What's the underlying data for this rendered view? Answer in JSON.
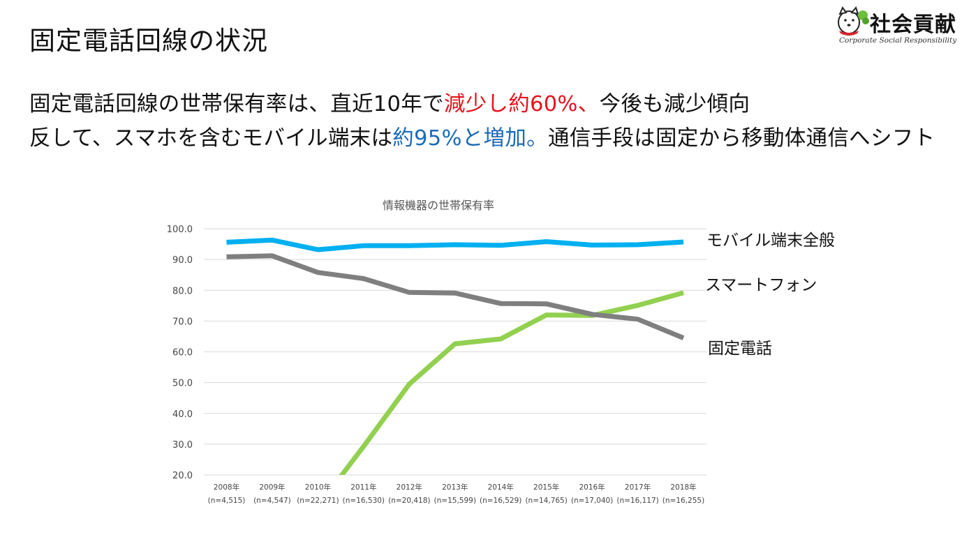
{
  "slide": {
    "title": "固定電話回線の状況",
    "line1": {
      "a": "固定電話回線の世帯保有率は、直近10年で",
      "b": "減少し約60%、",
      "c": "今後も減少傾向"
    },
    "line2": {
      "a": "反して、スマホを含むモバイル端末は",
      "b": "約95%と増加。",
      "c": "通信手段は固定から移動体通信へシフト"
    }
  },
  "logo": {
    "text": "社会貢献",
    "sub": "Corporate Social Responsibility",
    "icon": "dog-mascot-icon"
  },
  "colors": {
    "red": "#e8121b",
    "blue": "#1c6ab8",
    "mobile": "#00b0f0",
    "landline": "#7f7f7f",
    "smartphone": "#92d050"
  },
  "chart_data": {
    "type": "line",
    "title": "情報機器の世帯保有率",
    "categories": [
      "2008年",
      "2009年",
      "2010年",
      "2011年",
      "2012年",
      "2013年",
      "2014年",
      "2015年",
      "2016年",
      "2017年",
      "2018年"
    ],
    "sublabels": [
      "(n=4,515)",
      "(n=4,547)",
      "(n=22,271)",
      "(n=16,530)",
      "(n=20,418)",
      "(n=15,599)",
      "(n=16,529)",
      "(n=14,765)",
      "(n=17,040)",
      "(n=16,117)",
      "(n=16,255)"
    ],
    "ylim": [
      20,
      100
    ],
    "yticks": [
      "100.0",
      "90.0",
      "80.0",
      "70.0",
      "60.0",
      "50.0",
      "40.0",
      "30.0",
      "20.0"
    ],
    "grid": true,
    "series": [
      {
        "name": "モバイル端末全般",
        "color": "#00b0f0",
        "values": [
          95.6,
          96.3,
          93.2,
          94.5,
          94.5,
          94.8,
          94.6,
          95.8,
          94.7,
          94.8,
          95.7
        ]
      },
      {
        "name": "スマートフォン",
        "color": "#92d050",
        "values": [
          null,
          null,
          9.7,
          29.3,
          49.5,
          62.6,
          64.2,
          72.0,
          71.8,
          75.1,
          79.2
        ]
      },
      {
        "name": "固定電話",
        "color": "#7f7f7f",
        "values": [
          90.9,
          91.2,
          85.8,
          83.8,
          79.3,
          79.1,
          75.7,
          75.6,
          72.2,
          70.6,
          64.5
        ]
      }
    ]
  }
}
